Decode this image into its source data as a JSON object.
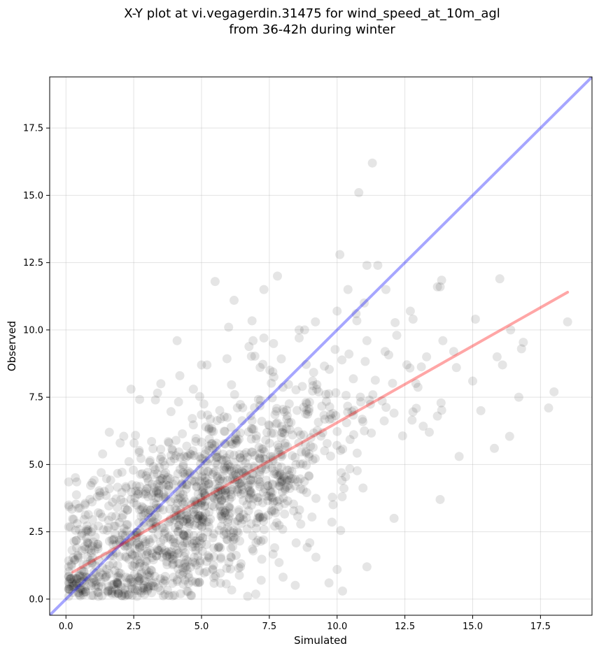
{
  "chart_data": {
    "type": "scatter",
    "title_line1": "X-Y plot at vi.vegagerdin.31475 for wind_speed_at_10m_agl",
    "title_line2": "from 36-42h during winter",
    "xlabel": "Simulated",
    "ylabel": "Observed",
    "xlim": [
      -0.6,
      19.4
    ],
    "ylim": [
      -0.6,
      19.4
    ],
    "xticks": [
      0.0,
      2.5,
      5.0,
      7.5,
      10.0,
      12.5,
      15.0,
      17.5
    ],
    "yticks": [
      0.0,
      2.5,
      5.0,
      7.5,
      10.0,
      12.5,
      15.0,
      17.5
    ],
    "grid": true,
    "point_color": "#000000",
    "point_opacity": 0.1,
    "identity_line": {
      "color": "#0000ff",
      "opacity": 0.35,
      "from": [
        -0.6,
        -0.6
      ],
      "to": [
        19.4,
        19.4
      ]
    },
    "fit_line": {
      "color": "#ff0000",
      "opacity": 0.35,
      "from": [
        0.25,
        1.0
      ],
      "to": [
        18.5,
        11.4
      ]
    },
    "points": [
      [
        11.3,
        16.2
      ],
      [
        10.8,
        15.1
      ],
      [
        10.1,
        12.8
      ],
      [
        11.1,
        12.4
      ],
      [
        11.5,
        12.4
      ],
      [
        7.8,
        12.0
      ],
      [
        5.5,
        11.8
      ],
      [
        6.2,
        11.1
      ],
      [
        7.3,
        11.5
      ],
      [
        10.4,
        11.5
      ],
      [
        11.8,
        11.5
      ],
      [
        13.7,
        11.6
      ],
      [
        13.8,
        11.6
      ],
      [
        16.0,
        11.9
      ],
      [
        10.7,
        10.6
      ],
      [
        11.0,
        11.0
      ],
      [
        9.2,
        10.3
      ],
      [
        10.0,
        10.7
      ],
      [
        12.7,
        10.7
      ],
      [
        12.8,
        10.4
      ],
      [
        15.1,
        10.4
      ],
      [
        8.6,
        10.0
      ],
      [
        18.5,
        10.3
      ],
      [
        6.0,
        10.1
      ],
      [
        4.1,
        9.6
      ],
      [
        16.4,
        10.0
      ],
      [
        11.1,
        9.6
      ],
      [
        12.2,
        9.8
      ],
      [
        13.9,
        9.6
      ],
      [
        14.3,
        9.2
      ],
      [
        6.9,
        9.6
      ],
      [
        7.3,
        9.7
      ],
      [
        8.6,
        9.7
      ],
      [
        13.3,
        9.0
      ],
      [
        15.9,
        9.0
      ],
      [
        16.1,
        8.7
      ],
      [
        16.8,
        9.3
      ],
      [
        15.0,
        8.1
      ],
      [
        2.4,
        7.8
      ],
      [
        4.7,
        7.8
      ],
      [
        17.8,
        7.1
      ],
      [
        18.0,
        7.7
      ],
      [
        16.7,
        7.5
      ],
      [
        14.5,
        5.3
      ],
      [
        15.3,
        7.0
      ],
      [
        15.8,
        5.6
      ],
      [
        13.8,
        3.7
      ],
      [
        12.1,
        3.0
      ],
      [
        11.1,
        1.2
      ],
      [
        10.0,
        1.1
      ],
      [
        9.7,
        0.6
      ],
      [
        10.2,
        0.3
      ],
      [
        6.7,
        0.1
      ],
      [
        7.2,
        0.7
      ],
      [
        1.3,
        4.7
      ],
      [
        0.7,
        3.5
      ],
      [
        0.2,
        1.3
      ],
      [
        0.5,
        0.4
      ],
      [
        1.2,
        0.1
      ],
      [
        1.6,
        6.2
      ],
      [
        2.0,
        5.8
      ],
      [
        3.5,
        8.0
      ],
      [
        4.2,
        8.3
      ],
      [
        5.0,
        8.7
      ],
      [
        5.2,
        8.7
      ],
      [
        8.8,
        10.0
      ],
      [
        3.3,
        7.4
      ],
      [
        13.4,
        6.2
      ],
      [
        13.7,
        6.8
      ],
      [
        14.4,
        8.6
      ]
    ],
    "cloud_seed": 20240611,
    "cloud_count": 1380
  }
}
